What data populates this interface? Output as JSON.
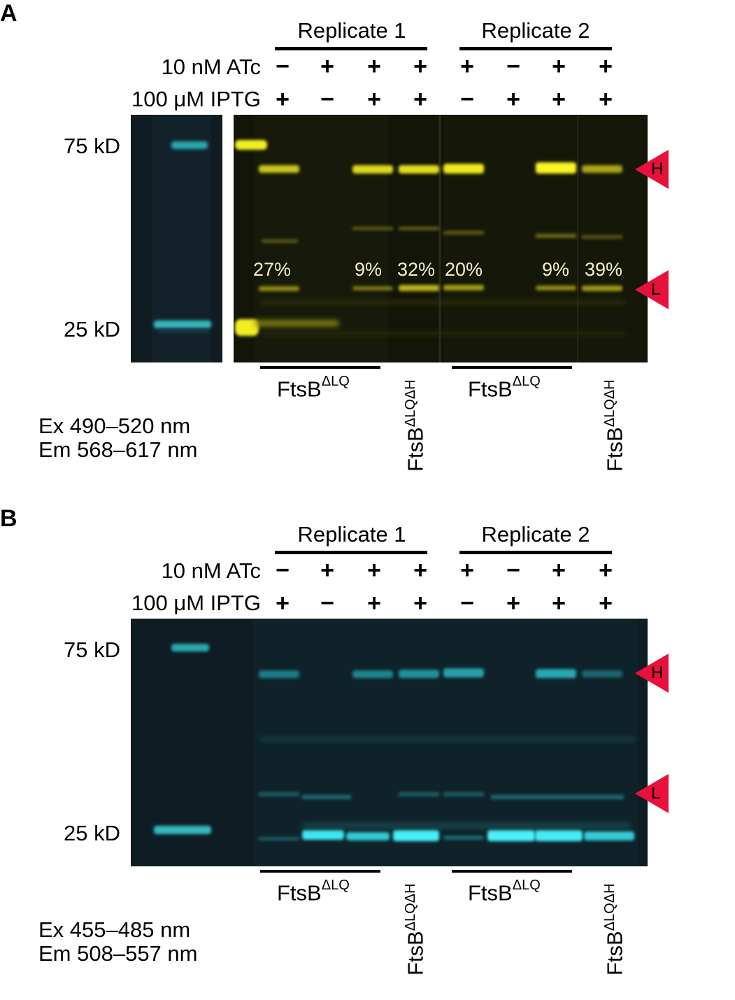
{
  "panels": [
    {
      "letter": "A",
      "replicates": [
        "Replicate 1",
        "Replicate 2"
      ],
      "atc_label": "10 nM ATc",
      "iptg_label": "100 μM IPTG",
      "atc_signs": [
        "−",
        "+",
        "+",
        "+",
        "+",
        "−",
        "+",
        "+"
      ],
      "iptg_signs": [
        "+",
        "−",
        "+",
        "+",
        "−",
        "+",
        "+",
        "+"
      ],
      "mw": [
        "75 kD",
        "25 kD"
      ],
      "percentages": [
        "27%",
        "9%",
        "32%",
        "20%",
        "9%",
        "39%"
      ],
      "markers": [
        "H",
        "L"
      ],
      "strain_main": "FtsB",
      "strain_sup": "ΔLQ",
      "strain_rot_sup": "ΔLQΔH",
      "filter_ex": "Ex 490–520 nm",
      "filter_em": "Em 568–617 nm",
      "colors": {
        "gel_bg": "#0f1208",
        "band": "#e8e21c",
        "ladder": "#2aa7b0",
        "ladder_bg": "#0e1a20",
        "marker": "#e8113c"
      }
    },
    {
      "letter": "B",
      "replicates": [
        "Replicate 1",
        "Replicate 2"
      ],
      "atc_label": "10 nM ATc",
      "iptg_label": "100 μM IPTG",
      "atc_signs": [
        "−",
        "+",
        "+",
        "+",
        "+",
        "−",
        "+",
        "+"
      ],
      "iptg_signs": [
        "+",
        "−",
        "+",
        "+",
        "−",
        "+",
        "+",
        "+"
      ],
      "mw": [
        "75 kD",
        "25 kD"
      ],
      "markers": [
        "H",
        "L"
      ],
      "strain_main": "FtsB",
      "strain_sup": "ΔLQ",
      "strain_rot_sup": "ΔLQΔH",
      "filter_ex": "Ex 455–485 nm",
      "filter_em": "Em 508–557 nm",
      "colors": {
        "gel_bg": "#0d1c22",
        "band": "#2fd8e6",
        "marker": "#e8113c"
      }
    }
  ]
}
